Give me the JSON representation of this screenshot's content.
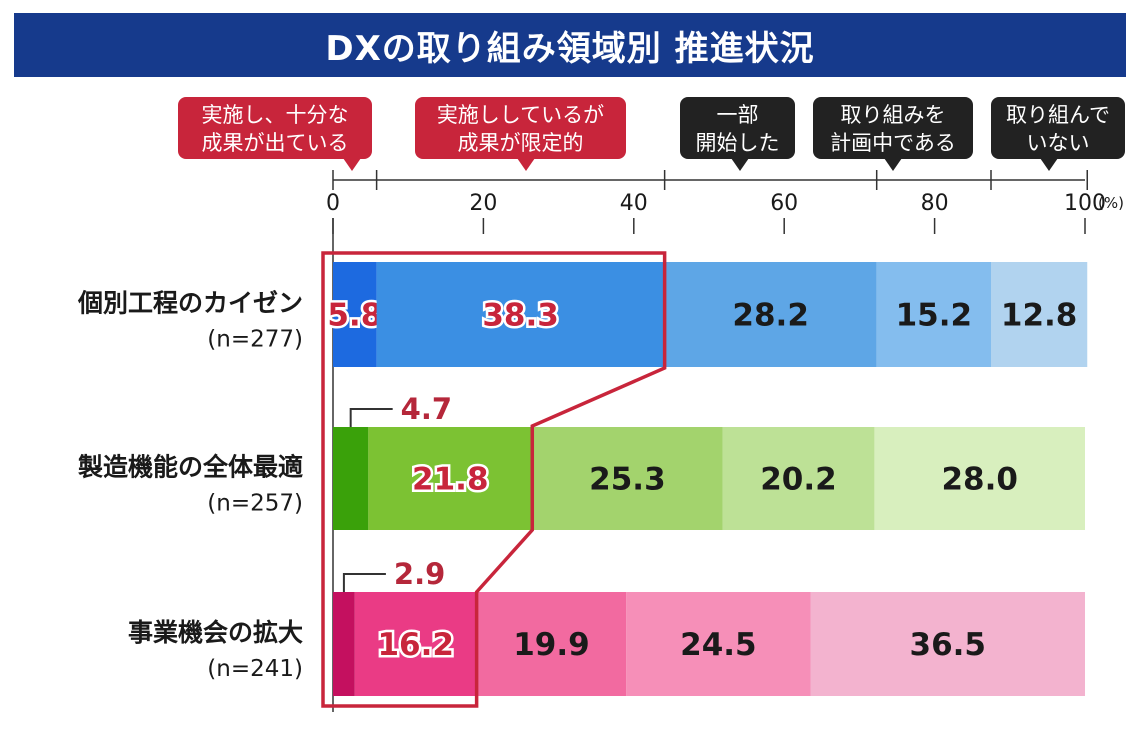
{
  "colors": {
    "title_bg": "#163a8c",
    "highlight": "#c8253b",
    "legend_dark": "#222222",
    "rows": [
      [
        "#1d6ae0",
        "#3b8fe3",
        "#5ea6e6",
        "#84bdee",
        "#b1d3ef"
      ],
      [
        "#3aa10a",
        "#7cc233",
        "#a3d36d",
        "#bde196",
        "#d8efbe"
      ],
      [
        "#c4105f",
        "#ea3b85",
        "#f26aa0",
        "#f68fb8",
        "#f3b3cf"
      ]
    ]
  },
  "chart_data": {
    "type": "bar",
    "orientation": "horizontal",
    "stacked": true,
    "title": "DXの取り組み領域別 推進状況",
    "unit": "(%)",
    "xlim": [
      0,
      100
    ],
    "xticks": [
      0,
      20,
      40,
      60,
      80,
      100
    ],
    "xtick_labels": [
      "0",
      "20",
      "40",
      "60",
      "80",
      "100"
    ],
    "categories": [
      {
        "label": "個別工程のカイゼン",
        "n": "(n=277)"
      },
      {
        "label": "製造機能の全体最適",
        "n": "(n=257)"
      },
      {
        "label": "事業機会の拡大",
        "n": "(n=241)"
      }
    ],
    "series": [
      {
        "name": "実施し、十分な成果が出ている",
        "values": [
          5.8,
          4.7,
          2.9
        ],
        "labels": [
          "5.8",
          "4.7",
          "2.9"
        ]
      },
      {
        "name": "実施ししているが成果が限定的",
        "values": [
          38.3,
          21.8,
          16.2
        ],
        "labels": [
          "38.3",
          "21.8",
          "16.2"
        ]
      },
      {
        "name": "一部開始した",
        "values": [
          28.2,
          25.3,
          19.9
        ],
        "labels": [
          "28.2",
          "25.3",
          "19.9"
        ]
      },
      {
        "name": "取り組みを計画中である",
        "values": [
          15.2,
          20.2,
          24.5
        ],
        "labels": [
          "15.2",
          "20.2",
          "24.5"
        ]
      },
      {
        "name": "取り組んでいない",
        "values": [
          12.8,
          28.0,
          36.5
        ],
        "labels": [
          "12.8",
          "28.0",
          "36.5"
        ]
      }
    ],
    "legend": [
      {
        "lines": [
          "実施し、十分な",
          "成果が出ている"
        ],
        "style": "highlight"
      },
      {
        "lines": [
          "実施ししているが",
          "成果が限定的"
        ],
        "style": "highlight"
      },
      {
        "lines": [
          "一部",
          "開始した"
        ],
        "style": "dark"
      },
      {
        "lines": [
          "取り組みを",
          "計画中である"
        ],
        "style": "dark"
      },
      {
        "lines": [
          "取り組んで",
          "いない"
        ],
        "style": "dark"
      }
    ]
  }
}
